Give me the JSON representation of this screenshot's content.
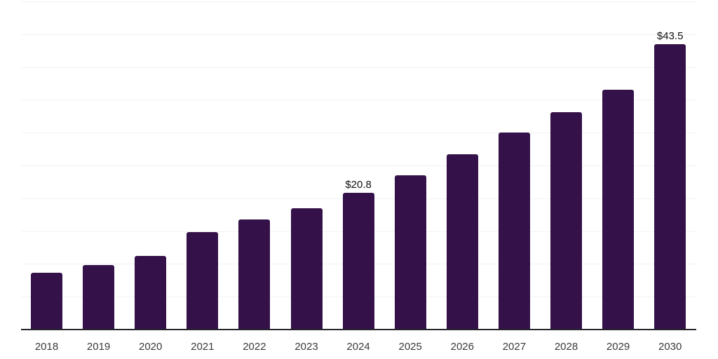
{
  "chart_data": {
    "type": "bar",
    "title": "",
    "xlabel": "",
    "ylabel": "",
    "categories": [
      "2018",
      "2019",
      "2020",
      "2021",
      "2022",
      "2023",
      "2024",
      "2025",
      "2026",
      "2027",
      "2028",
      "2029",
      "2030"
    ],
    "values": [
      8.7,
      9.8,
      11.2,
      14.9,
      16.8,
      18.5,
      20.8,
      23.5,
      26.7,
      30.0,
      33.1,
      36.5,
      43.5
    ],
    "data_labels": [
      "",
      "",
      "",
      "",
      "",
      "",
      "$20.8",
      "",
      "",
      "",
      "",
      "",
      "$43.5"
    ],
    "ylim": [
      0,
      50
    ],
    "grid_interval": 5,
    "grid": "horizontal",
    "legend": "none",
    "y_axis_labels_visible": false,
    "colors": {
      "bar": "#341249",
      "grid": "#f2f2f2",
      "axis": "#26252b",
      "tick_label": "#3a3a3a",
      "data_label": "#111111",
      "background": "#ffffff"
    }
  }
}
